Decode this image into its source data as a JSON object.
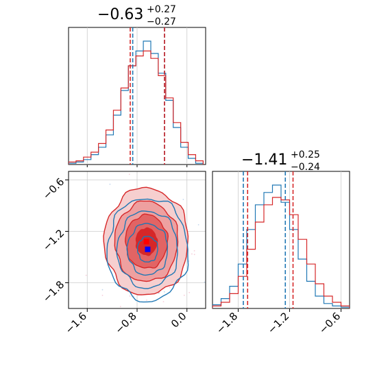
{
  "chart_data": {
    "type": "corner",
    "colors": {
      "series_a": "#1f77b4",
      "series_b": "#d62728"
    },
    "grid": true,
    "params": [
      {
        "title_main": "−0.63",
        "title_sup": "+0.27",
        "title_sub": "−0.27",
        "xlim": [
          -1.9,
          0.3
        ],
        "dashed_lines": {
          "series_a": [
            -0.87,
            -0.36
          ],
          "series_b": [
            -0.91,
            -0.36
          ]
        },
        "hist_a": {
          "bins": [
            -1.9,
            -1.78,
            -1.66,
            -1.54,
            -1.42,
            -1.3,
            -1.18,
            -1.06,
            -0.94,
            -0.82,
            -0.7,
            -0.58,
            -0.46,
            -0.34,
            -0.22,
            -0.1,
            0.02,
            0.14,
            0.26
          ],
          "counts": [
            1,
            2,
            4,
            8,
            14,
            24,
            40,
            60,
            80,
            92,
            100,
            90,
            74,
            52,
            30,
            14,
            5,
            1
          ]
        },
        "hist_b": {
          "bins": [
            -1.9,
            -1.78,
            -1.66,
            -1.54,
            -1.42,
            -1.3,
            -1.18,
            -1.06,
            -0.94,
            -0.82,
            -0.7,
            -0.58,
            -0.46,
            -0.34,
            -0.22,
            -0.1,
            0.02,
            0.14,
            0.26
          ],
          "counts": [
            2,
            3,
            6,
            10,
            17,
            28,
            44,
            62,
            80,
            88,
            92,
            86,
            72,
            54,
            34,
            18,
            8,
            3
          ]
        }
      },
      {
        "title_main": "−1.41",
        "title_sup": "+0.25",
        "title_sub": "−0.24",
        "xlim": [
          -2.1,
          -0.5
        ],
        "dashed_lines": {
          "series_a": [
            -1.74,
            -1.25
          ],
          "series_b": [
            -1.69,
            -1.16
          ]
        },
        "hist_a": {
          "bins": [
            -2.1,
            -2.0,
            -1.9,
            -1.8,
            -1.7,
            -1.6,
            -1.5,
            -1.4,
            -1.3,
            -1.2,
            -1.1,
            -1.0,
            -0.9,
            -0.8,
            -0.7,
            -0.6,
            -0.5
          ],
          "counts": [
            3,
            8,
            18,
            36,
            64,
            84,
            94,
            100,
            86,
            64,
            40,
            22,
            10,
            4,
            2,
            1
          ]
        },
        "hist_b": {
          "bins": [
            -2.1,
            -2.0,
            -1.9,
            -1.8,
            -1.7,
            -1.6,
            -1.5,
            -1.4,
            -1.3,
            -1.2,
            -1.1,
            -1.0,
            -0.9,
            -0.8,
            -0.7,
            -0.6,
            -0.5
          ],
          "counts": [
            2,
            5,
            12,
            26,
            48,
            70,
            84,
            90,
            88,
            76,
            56,
            36,
            20,
            10,
            5,
            2
          ]
        }
      }
    ],
    "scatter_panel": {
      "xlim": [
        -1.9,
        0.3
      ],
      "ylim": [
        -2.1,
        -0.5
      ],
      "xticks": [
        -1.6,
        -0.8,
        0.0
      ],
      "xtick_labels": [
        "−1.6",
        "−0.8",
        "0.0"
      ],
      "yticks": [
        -0.6,
        -1.2,
        -1.8
      ],
      "ytick_labels": [
        "−0.6",
        "−1.2",
        "−1.8"
      ],
      "center_a": [
        -0.63,
        -1.41
      ],
      "center_b": [
        -0.65,
        -1.32
      ],
      "sigma": [
        0.27,
        0.25
      ],
      "contour_levels_sigma": [
        0.5,
        1.0,
        1.5,
        2.0
      ]
    },
    "diag2_xticks": [
      -1.8,
      -1.2,
      -0.6
    ],
    "diag2_xtick_labels": [
      "−1.8",
      "−1.2",
      "−0.6"
    ]
  }
}
